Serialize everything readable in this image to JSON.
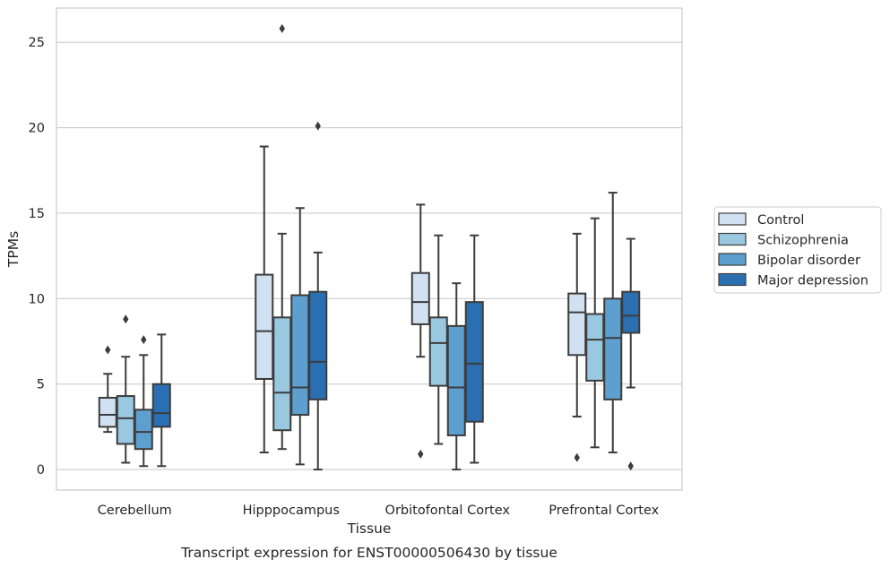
{
  "chart_data": {
    "type": "boxplot",
    "caption": "Transcript expression for ENST00000506430 by tissue",
    "xlabel": "Tissue",
    "ylabel": "TPMs",
    "ylim": [
      -1.2,
      27.0
    ],
    "yticks": [
      0,
      5,
      10,
      15,
      20,
      25
    ],
    "grid": "horizontal",
    "legend_position": "right",
    "categories": [
      "Cerebellum",
      "Hipppocampus",
      "Orbitofontal Cortex",
      "Prefrontal Cortex"
    ],
    "series": [
      {
        "name": "Control",
        "color": "#d1e1f1",
        "boxes": [
          {
            "whislo": 2.2,
            "q1": 2.5,
            "med": 3.2,
            "q3": 4.2,
            "whishi": 5.6,
            "fliers": [
              7.0
            ]
          },
          {
            "whislo": 1.0,
            "q1": 5.3,
            "med": 8.1,
            "q3": 11.4,
            "whishi": 18.9,
            "fliers": []
          },
          {
            "whislo": 6.6,
            "q1": 8.5,
            "med": 9.8,
            "q3": 11.5,
            "whishi": 15.5,
            "fliers": [
              0.9
            ]
          },
          {
            "whislo": 3.1,
            "q1": 6.7,
            "med": 9.2,
            "q3": 10.3,
            "whishi": 13.8,
            "fliers": [
              0.7
            ]
          }
        ]
      },
      {
        "name": "Schizophrenia",
        "color": "#9ac8e0",
        "boxes": [
          {
            "whislo": 0.4,
            "q1": 1.5,
            "med": 3.0,
            "q3": 4.3,
            "whishi": 6.6,
            "fliers": [
              8.8
            ]
          },
          {
            "whislo": 1.2,
            "q1": 2.3,
            "med": 4.5,
            "q3": 8.9,
            "whishi": 13.8,
            "fliers": [
              25.8
            ]
          },
          {
            "whislo": 1.5,
            "q1": 4.9,
            "med": 7.4,
            "q3": 8.9,
            "whishi": 13.7,
            "fliers": []
          },
          {
            "whislo": 1.3,
            "q1": 5.2,
            "med": 7.6,
            "q3": 9.1,
            "whishi": 14.7,
            "fliers": []
          }
        ]
      },
      {
        "name": "Bipolar disorder",
        "color": "#5da0cf",
        "boxes": [
          {
            "whislo": 0.2,
            "q1": 1.2,
            "med": 2.2,
            "q3": 3.5,
            "whishi": 6.7,
            "fliers": [
              7.6
            ]
          },
          {
            "whislo": 0.3,
            "q1": 3.2,
            "med": 4.8,
            "q3": 10.2,
            "whishi": 15.3,
            "fliers": []
          },
          {
            "whislo": 0.0,
            "q1": 2.0,
            "med": 4.8,
            "q3": 8.4,
            "whishi": 10.9,
            "fliers": []
          },
          {
            "whislo": 1.0,
            "q1": 4.1,
            "med": 7.7,
            "q3": 10.0,
            "whishi": 16.2,
            "fliers": []
          }
        ]
      },
      {
        "name": "Major depression",
        "color": "#2a6fb1",
        "boxes": [
          {
            "whislo": 0.2,
            "q1": 2.5,
            "med": 3.3,
            "q3": 5.0,
            "whishi": 7.9,
            "fliers": []
          },
          {
            "whislo": 0.0,
            "q1": 4.1,
            "med": 6.3,
            "q3": 10.4,
            "whishi": 12.7,
            "fliers": [
              20.1
            ]
          },
          {
            "whislo": 0.4,
            "q1": 2.8,
            "med": 6.2,
            "q3": 9.8,
            "whishi": 13.7,
            "fliers": []
          },
          {
            "whislo": 4.8,
            "q1": 8.0,
            "med": 9.0,
            "q3": 10.4,
            "whishi": 13.5,
            "fliers": [
              0.2
            ]
          }
        ]
      }
    ]
  }
}
